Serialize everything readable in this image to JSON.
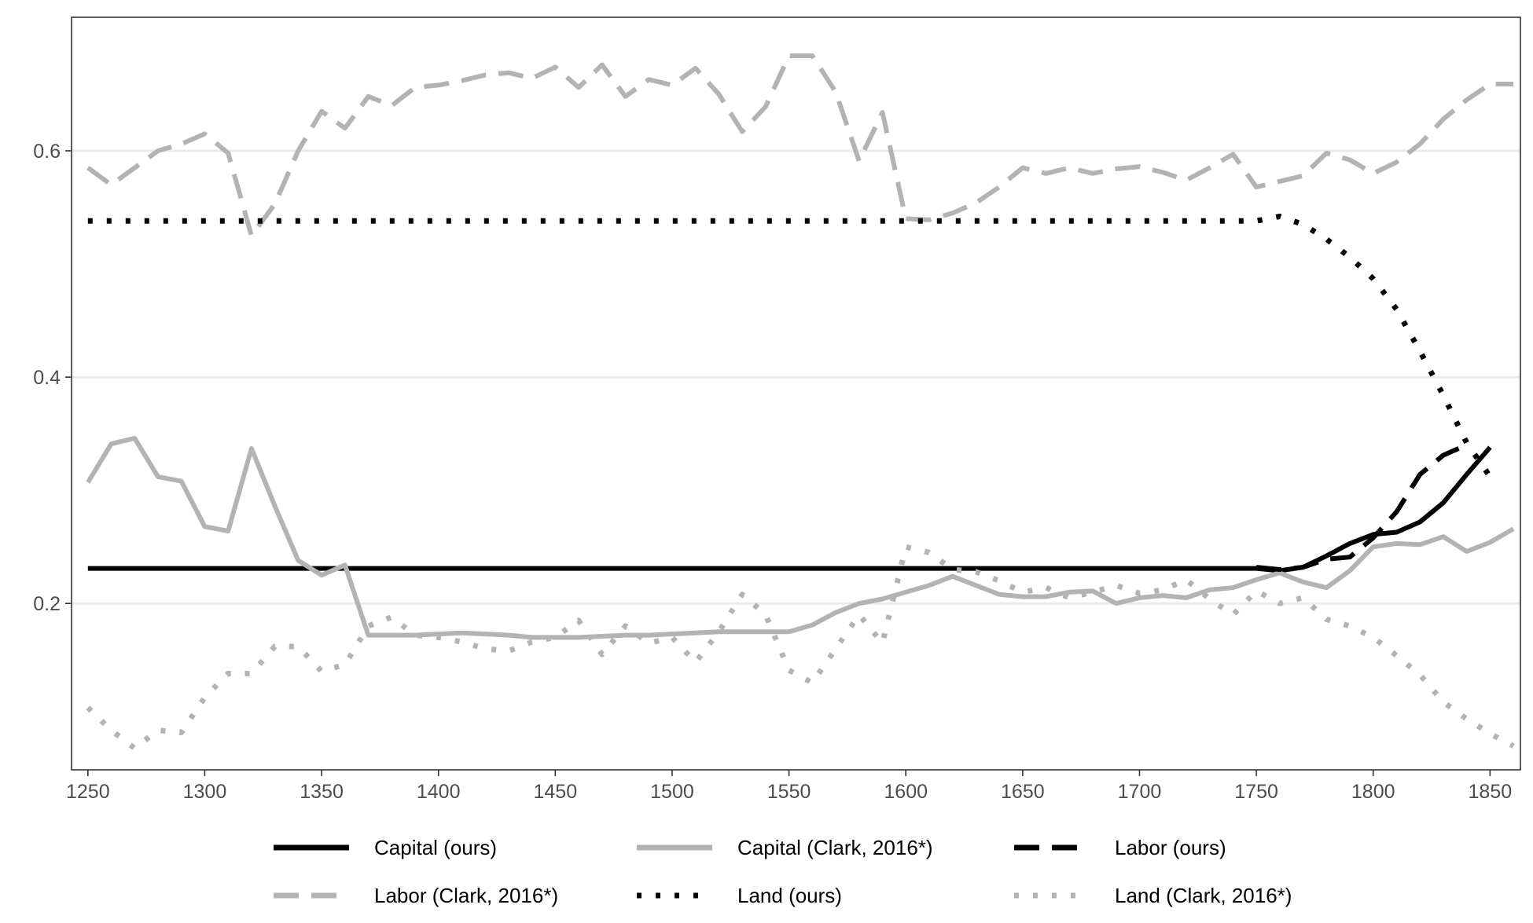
{
  "chart_data": {
    "type": "line",
    "title": "",
    "xlabel": "",
    "ylabel": "",
    "xlim": [
      1243,
      1863
    ],
    "ylim": [
      0.053,
      0.718
    ],
    "x_ticks": [
      1250,
      1300,
      1350,
      1400,
      1450,
      1500,
      1550,
      1600,
      1650,
      1700,
      1750,
      1800,
      1850
    ],
    "x_tick_labels": [
      "1250",
      "1300",
      "1350",
      "1400",
      "1450",
      "1500",
      "1550",
      "1600",
      "1650",
      "1700",
      "1750",
      "1800",
      "1850"
    ],
    "y_ticks": [
      0.2,
      0.4,
      0.6
    ],
    "y_tick_labels": [
      "0.2",
      "0.4",
      "0.6"
    ],
    "grid": "horizontal-major",
    "legend_position": "bottom",
    "series": [
      {
        "name": "Capital (ours)",
        "color": "#000000",
        "dash": "solid",
        "x": [
          1250,
          1300,
          1350,
          1400,
          1450,
          1500,
          1550,
          1600,
          1650,
          1700,
          1750,
          1760,
          1770,
          1780,
          1790,
          1800,
          1810,
          1820,
          1830,
          1840,
          1850
        ],
        "values": [
          0.231,
          0.231,
          0.231,
          0.231,
          0.231,
          0.231,
          0.231,
          0.231,
          0.231,
          0.231,
          0.231,
          0.229,
          0.232,
          0.242,
          0.253,
          0.261,
          0.263,
          0.272,
          0.289,
          0.314,
          0.338
        ]
      },
      {
        "name": "Capital (Clark, 2016*)",
        "color": "#b3b3b3",
        "dash": "solid",
        "x": [
          1250,
          1260,
          1270,
          1280,
          1290,
          1300,
          1310,
          1320,
          1330,
          1340,
          1350,
          1360,
          1370,
          1380,
          1390,
          1400,
          1410,
          1420,
          1430,
          1440,
          1450,
          1460,
          1470,
          1480,
          1490,
          1500,
          1510,
          1520,
          1530,
          1540,
          1550,
          1560,
          1570,
          1580,
          1590,
          1600,
          1610,
          1620,
          1630,
          1640,
          1650,
          1660,
          1670,
          1680,
          1690,
          1700,
          1710,
          1720,
          1730,
          1740,
          1750,
          1760,
          1770,
          1780,
          1790,
          1800,
          1810,
          1820,
          1830,
          1840,
          1850,
          1860
        ],
        "values": [
          0.307,
          0.341,
          0.346,
          0.312,
          0.308,
          0.268,
          0.264,
          0.337,
          0.286,
          0.238,
          0.225,
          0.234,
          0.172,
          0.172,
          0.172,
          0.173,
          0.174,
          0.173,
          0.172,
          0.17,
          0.17,
          0.17,
          0.171,
          0.172,
          0.172,
          0.173,
          0.174,
          0.175,
          0.175,
          0.175,
          0.175,
          0.181,
          0.192,
          0.2,
          0.204,
          0.21,
          0.216,
          0.224,
          0.216,
          0.208,
          0.206,
          0.206,
          0.21,
          0.211,
          0.2,
          0.205,
          0.207,
          0.205,
          0.212,
          0.214,
          0.221,
          0.227,
          0.219,
          0.214,
          0.229,
          0.25,
          0.253,
          0.252,
          0.259,
          0.246,
          0.254,
          0.266
        ]
      },
      {
        "name": "Labor (ours)",
        "color": "#000000",
        "dash": "long-dash",
        "x": [
          1750,
          1760,
          1770,
          1780,
          1790,
          1800,
          1810,
          1820,
          1830,
          1840
        ],
        "values": [
          0.232,
          0.23,
          0.232,
          0.239,
          0.241,
          0.258,
          0.281,
          0.314,
          0.331,
          0.34
        ]
      },
      {
        "name": "Labor (Clark, 2016*)",
        "color": "#b3b3b3",
        "dash": "long-dash",
        "x": [
          1250,
          1260,
          1270,
          1280,
          1290,
          1300,
          1310,
          1320,
          1330,
          1340,
          1350,
          1360,
          1370,
          1380,
          1390,
          1400,
          1410,
          1420,
          1430,
          1440,
          1450,
          1460,
          1470,
          1480,
          1490,
          1500,
          1510,
          1520,
          1530,
          1540,
          1550,
          1560,
          1570,
          1580,
          1590,
          1600,
          1610,
          1620,
          1630,
          1640,
          1650,
          1660,
          1670,
          1680,
          1690,
          1700,
          1710,
          1720,
          1730,
          1740,
          1750,
          1760,
          1770,
          1780,
          1790,
          1800,
          1810,
          1820,
          1830,
          1840,
          1850,
          1860
        ],
        "values": [
          0.585,
          0.57,
          0.585,
          0.6,
          0.606,
          0.615,
          0.598,
          0.525,
          0.553,
          0.6,
          0.635,
          0.62,
          0.648,
          0.64,
          0.656,
          0.658,
          0.662,
          0.667,
          0.669,
          0.664,
          0.674,
          0.656,
          0.676,
          0.648,
          0.663,
          0.658,
          0.673,
          0.65,
          0.617,
          0.639,
          0.684,
          0.684,
          0.652,
          0.591,
          0.634,
          0.54,
          0.539,
          0.545,
          0.554,
          0.568,
          0.585,
          0.58,
          0.585,
          0.58,
          0.584,
          0.586,
          0.581,
          0.574,
          0.585,
          0.597,
          0.568,
          0.573,
          0.578,
          0.598,
          0.592,
          0.58,
          0.59,
          0.606,
          0.628,
          0.645,
          0.659,
          0.659
        ]
      },
      {
        "name": "Land (ours)",
        "color": "#000000",
        "dash": "dotted",
        "x": [
          1250,
          1300,
          1350,
          1400,
          1450,
          1500,
          1550,
          1600,
          1650,
          1700,
          1750,
          1760,
          1770,
          1780,
          1790,
          1800,
          1810,
          1820,
          1830,
          1840,
          1850
        ],
        "values": [
          0.538,
          0.538,
          0.538,
          0.538,
          0.538,
          0.538,
          0.538,
          0.538,
          0.538,
          0.538,
          0.538,
          0.542,
          0.535,
          0.522,
          0.506,
          0.487,
          0.46,
          0.423,
          0.384,
          0.342,
          0.312
        ]
      },
      {
        "name": "Land (Clark, 2016*)",
        "color": "#b3b3b3",
        "dash": "dotted",
        "x": [
          1250,
          1260,
          1270,
          1280,
          1290,
          1300,
          1310,
          1320,
          1330,
          1340,
          1350,
          1360,
          1370,
          1380,
          1390,
          1400,
          1410,
          1420,
          1430,
          1440,
          1450,
          1460,
          1470,
          1480,
          1490,
          1500,
          1510,
          1520,
          1530,
          1540,
          1550,
          1560,
          1570,
          1580,
          1590,
          1600,
          1610,
          1620,
          1630,
          1640,
          1650,
          1660,
          1670,
          1680,
          1690,
          1700,
          1710,
          1720,
          1730,
          1740,
          1750,
          1760,
          1770,
          1780,
          1790,
          1800,
          1810,
          1820,
          1830,
          1840,
          1850,
          1860
        ],
        "values": [
          0.108,
          0.088,
          0.072,
          0.088,
          0.086,
          0.117,
          0.138,
          0.138,
          0.162,
          0.162,
          0.14,
          0.146,
          0.18,
          0.188,
          0.172,
          0.17,
          0.166,
          0.16,
          0.158,
          0.166,
          0.17,
          0.185,
          0.155,
          0.18,
          0.165,
          0.17,
          0.148,
          0.175,
          0.208,
          0.19,
          0.141,
          0.13,
          0.16,
          0.19,
          0.165,
          0.25,
          0.245,
          0.23,
          0.228,
          0.22,
          0.21,
          0.214,
          0.205,
          0.21,
          0.216,
          0.209,
          0.212,
          0.221,
          0.204,
          0.19,
          0.211,
          0.2,
          0.205,
          0.186,
          0.18,
          0.17,
          0.154,
          0.137,
          0.113,
          0.098,
          0.085,
          0.074
        ]
      }
    ]
  }
}
